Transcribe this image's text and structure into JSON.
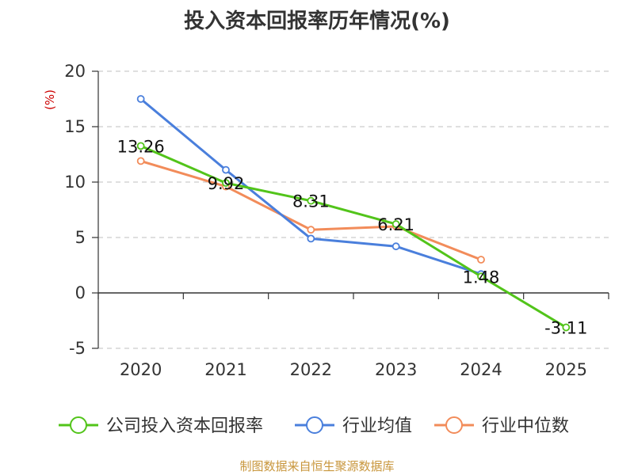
{
  "title": "投入资本回报率历年情况(%)",
  "source": "制图数据来自恒生聚源数据库",
  "chart_data": {
    "type": "line",
    "title": "投入资本回报率历年情况(%)",
    "ylabel": "(%)",
    "categories": [
      "2020",
      "2021",
      "2022",
      "2023",
      "2024",
      "2025"
    ],
    "ylim": [
      -5,
      20
    ],
    "yticks": [
      20,
      15,
      10,
      5,
      0,
      -5
    ],
    "grid": true,
    "legend_position": "bottom",
    "series": [
      {
        "name": "公司投入资本回报率",
        "color": "#52c41a",
        "values": [
          13.26,
          9.92,
          8.31,
          6.21,
          1.48,
          -3.11
        ],
        "labels": [
          "13.26",
          "9.92",
          "8.31",
          "6.21",
          "1.48",
          "-3.11"
        ]
      },
      {
        "name": "行业均值",
        "color": "#4a7fdc",
        "values": [
          17.5,
          11.1,
          4.9,
          4.2,
          1.7,
          null
        ]
      },
      {
        "name": "行业中位数",
        "color": "#f28c5a",
        "values": [
          11.9,
          9.6,
          5.7,
          6.0,
          3.0,
          null
        ]
      }
    ]
  }
}
